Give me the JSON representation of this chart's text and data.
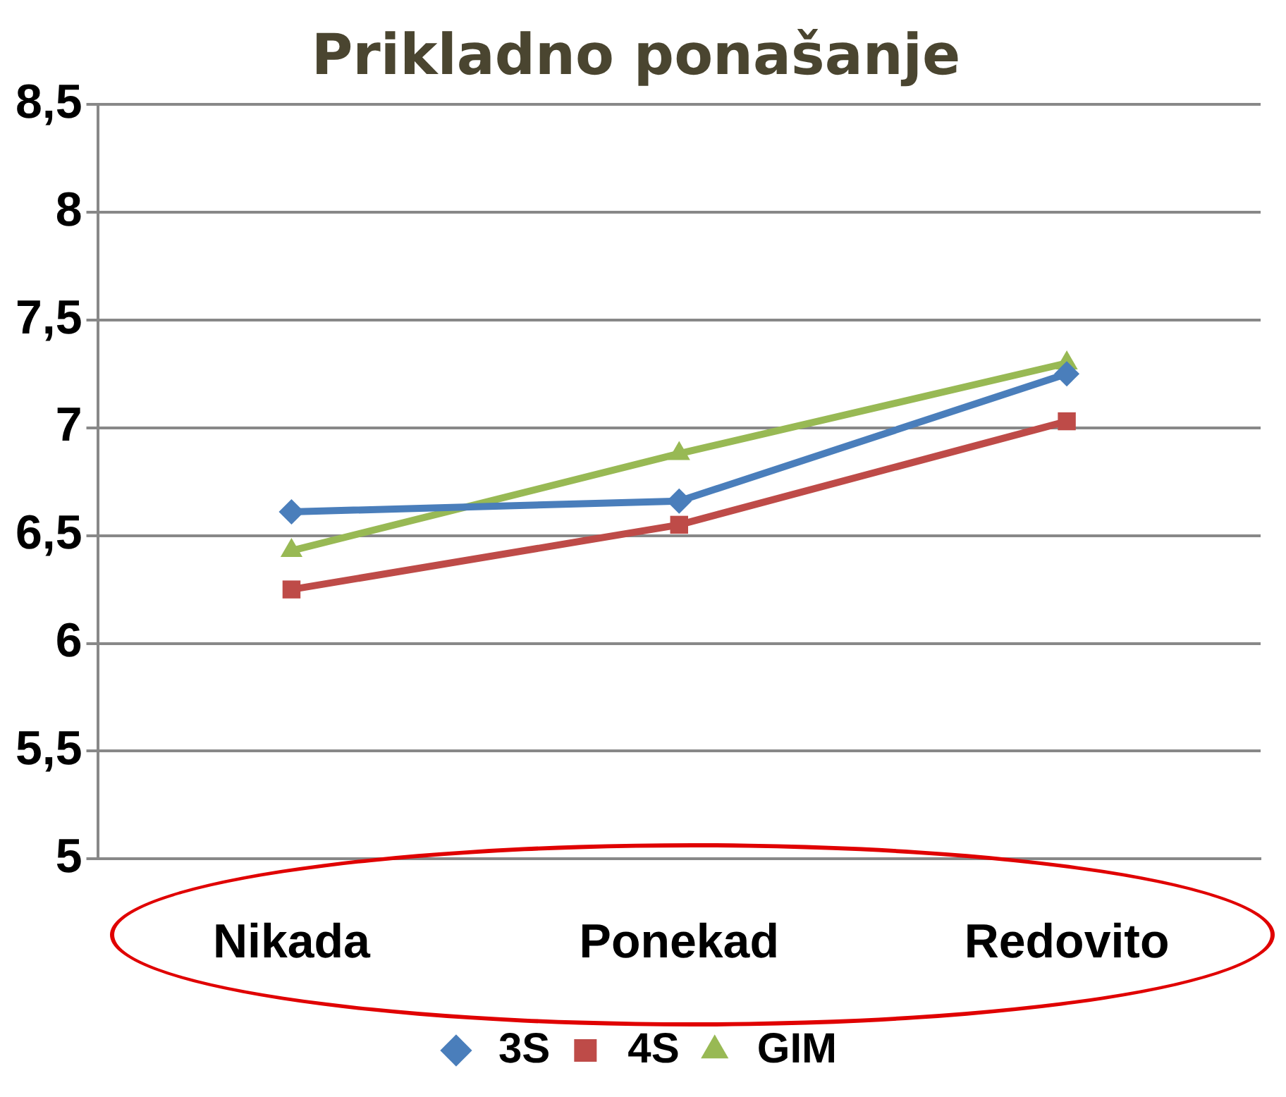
{
  "chart_data": {
    "type": "line",
    "title": "Prikladno ponašanje",
    "categories": [
      "Nikada",
      "Ponekad",
      "Redovito"
    ],
    "series": [
      {
        "name": "3S",
        "color": "#4a7ebb",
        "marker": "diamond",
        "values": [
          6.61,
          6.66,
          7.25
        ]
      },
      {
        "name": "4S",
        "color": "#be4b48",
        "marker": "square",
        "values": [
          6.25,
          6.55,
          7.03
        ]
      },
      {
        "name": "GIM",
        "color": "#98b954",
        "marker": "triangle",
        "values": [
          6.43,
          6.88,
          7.3
        ]
      }
    ],
    "ylim": [
      5,
      8.5
    ],
    "yticks": [
      {
        "value": 5,
        "label": "5"
      },
      {
        "value": 5.5,
        "label": "5,5"
      },
      {
        "value": 6,
        "label": "6"
      },
      {
        "value": 6.5,
        "label": "6,5"
      },
      {
        "value": 7,
        "label": "7"
      },
      {
        "value": 7.5,
        "label": "7,5"
      },
      {
        "value": 8,
        "label": "8"
      },
      {
        "value": 8.5,
        "label": "8,5"
      }
    ],
    "grid": "y",
    "legend": "bottom",
    "line_style": "solid"
  }
}
